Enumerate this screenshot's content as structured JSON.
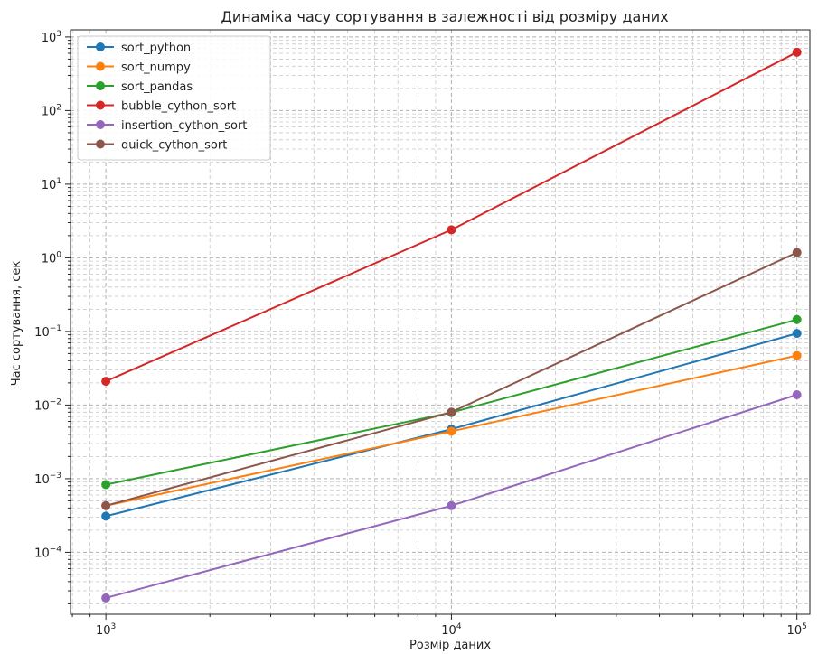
{
  "chart_data": {
    "type": "line",
    "title": "Динаміка часу сортування в залежності від розміру даних",
    "xlabel": "Розмір даних",
    "ylabel": "Час сортування, сек",
    "x": [
      1000,
      10000,
      100000
    ],
    "xscale": "log",
    "yscale": "log",
    "xlim": [
      790,
      109000
    ],
    "ylim": [
      1.44e-05,
      1250
    ],
    "xticks": [
      {
        "base": "10",
        "exp": "3"
      },
      {
        "base": "10",
        "exp": "4"
      },
      {
        "base": "10",
        "exp": "5"
      }
    ],
    "yticks": [
      {
        "base": "10",
        "exp": "−4"
      },
      {
        "base": "10",
        "exp": "−3"
      },
      {
        "base": "10",
        "exp": "−2"
      },
      {
        "base": "10",
        "exp": "−1"
      },
      {
        "base": "10",
        "exp": "0"
      },
      {
        "base": "10",
        "exp": "1"
      },
      {
        "base": "10",
        "exp": "2"
      },
      {
        "base": "10",
        "exp": "3"
      }
    ],
    "grid": true,
    "grid_which": "both",
    "legend_position": "top-left",
    "series": [
      {
        "name": "sort_python",
        "color": "#1f77b4",
        "values": [
          0.00031,
          0.0047,
          0.094
        ]
      },
      {
        "name": "sort_numpy",
        "color": "#ff7f0e",
        "values": [
          0.00043,
          0.0044,
          0.047
        ]
      },
      {
        "name": "sort_pandas",
        "color": "#2ca02c",
        "values": [
          0.00083,
          0.0079,
          0.145
        ]
      },
      {
        "name": "bubble_cython_sort",
        "color": "#d62728",
        "values": [
          0.021,
          2.4,
          620
        ]
      },
      {
        "name": "insertion_cython_sort",
        "color": "#9467bd",
        "values": [
          2.4e-05,
          0.00043,
          0.0138
        ]
      },
      {
        "name": "quick_cython_sort",
        "color": "#8c564b",
        "values": [
          0.00043,
          0.008,
          1.18
        ]
      }
    ]
  }
}
